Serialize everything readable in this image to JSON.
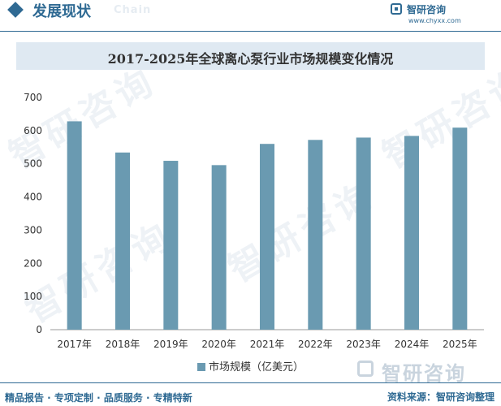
{
  "header": {
    "title": "发展现状",
    "faint_text": "Chain"
  },
  "brand": {
    "name": "智研咨询",
    "url": "www.chyxx.com"
  },
  "watermark_text": "智研咨询",
  "chart_data": {
    "type": "bar",
    "title": "2017-2025年全球离心泵行业市场规模变化情况",
    "categories": [
      "2017年",
      "2018年",
      "2019年",
      "2020年",
      "2021年",
      "2022年",
      "2023年",
      "2024年",
      "2025年"
    ],
    "series": [
      {
        "name": "市场规模（亿美元）",
        "values": [
          628,
          534,
          509,
          496,
          560,
          572,
          579,
          584,
          609
        ]
      }
    ],
    "ylim": [
      0,
      700
    ],
    "yticks": [
      0,
      100,
      200,
      300,
      400,
      500,
      600,
      700
    ],
    "xlabel": "",
    "ylabel": "",
    "grid": false,
    "legend": "bottom-center",
    "bar_color": "#6a9ab1"
  },
  "footer": {
    "left": "精品报告 · 专项定制 · 品质服务 · 专精特新",
    "right": "资料来源：智研咨询整理"
  },
  "bigbrand": {
    "text": "智研咨询"
  }
}
